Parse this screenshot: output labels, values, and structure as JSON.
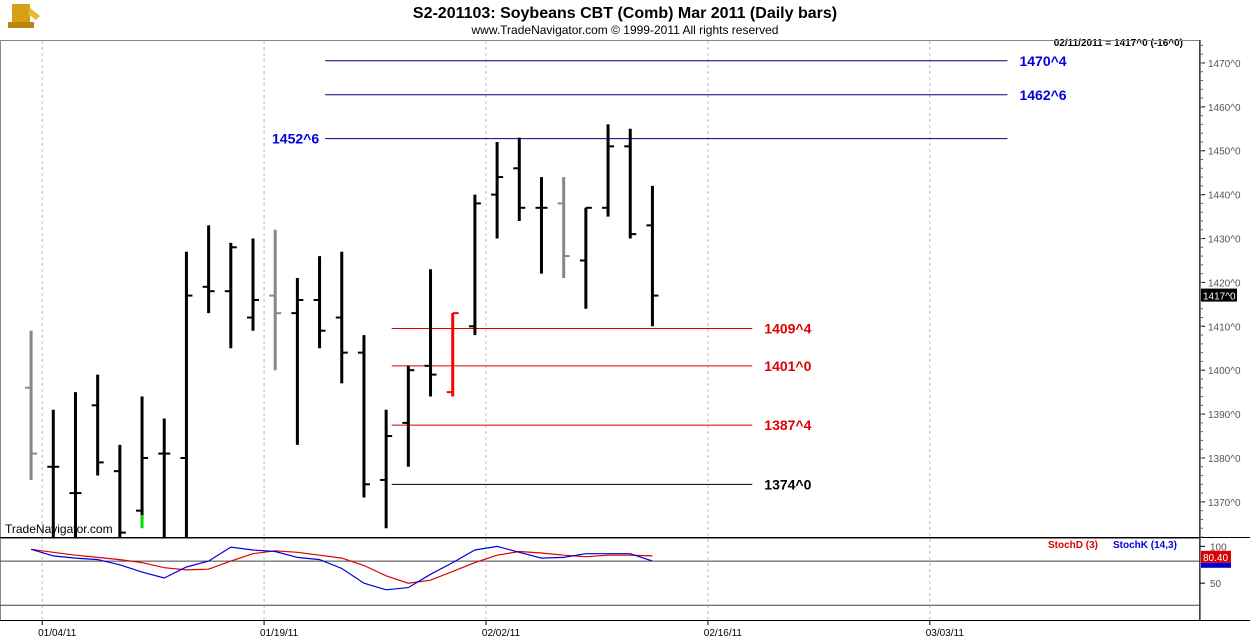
{
  "header": {
    "title": "S2-201103:  Soybeans CBT (Comb) Mar 2011  (Daily bars)",
    "subtitle": "www.TradeNavigator.com © 1999-2011 All rights reserved",
    "last_info": "02/11/2011 = 1417^0 (-16^0)",
    "watermark": "TradeNavigator.com",
    "logo": "trophy-icon"
  },
  "colors": {
    "bar": "#000000",
    "gray_bar": "#888888",
    "red_bar": "#ff0000",
    "green_bar": "#00dd00",
    "resistance": "#000080",
    "resistance_label": "#0000dd",
    "support": "#dd0000",
    "support_label": "#dd0000",
    "base_line": "#000000",
    "stoch_d": "#dd0000",
    "stoch_k": "#0000dd",
    "grid": "#bbbbbb"
  },
  "chart_data": [
    {
      "type": "ohlc",
      "ylim": [
        1362,
        1475
      ],
      "yticks": [
        "1370^0",
        "1380^0",
        "1390^0",
        "1400^0",
        "1410^0",
        "1420^0",
        "1430^0",
        "1440^0",
        "1450^0",
        "1460^0",
        "1470^0"
      ],
      "ytick_values": [
        1370,
        1380,
        1390,
        1400,
        1410,
        1420,
        1430,
        1440,
        1450,
        1460,
        1470
      ],
      "xticks": [
        "01/04/11",
        "01/19/11",
        "02/02/11",
        "02/16/11",
        "03/03/11"
      ],
      "xtick_index": [
        0.5,
        10.5,
        20.5,
        30.5,
        40.5
      ],
      "xlim": [
        -0.5,
        52
      ],
      "last_price": "1417^0",
      "last_value": 1417,
      "bars": [
        {
          "o": 1396,
          "h": 1409,
          "l": 1375,
          "c": 1381,
          "color": "gray"
        },
        {
          "o": 1378,
          "h": 1391,
          "l": 1362,
          "c": 1378,
          "color": "black"
        },
        {
          "o": 1372,
          "h": 1395,
          "l": 1362,
          "c": 1372,
          "color": "black"
        },
        {
          "o": 1392,
          "h": 1399,
          "l": 1376,
          "c": 1379,
          "color": "black"
        },
        {
          "o": 1377,
          "h": 1383,
          "l": 1362,
          "c": 1363,
          "color": "black"
        },
        {
          "o": 1368,
          "h": 1394,
          "l": 1366,
          "c": 1380,
          "color": "black"
        },
        {
          "o": 1381,
          "h": 1389,
          "l": 1362,
          "c": 1381,
          "color": "black"
        },
        {
          "o": 1380,
          "h": 1427,
          "l": 1362,
          "c": 1417,
          "color": "black"
        },
        {
          "o": 1419,
          "h": 1433,
          "l": 1413,
          "c": 1418,
          "color": "black"
        },
        {
          "o": 1418,
          "h": 1429,
          "l": 1405,
          "c": 1428,
          "color": "black"
        },
        {
          "o": 1412,
          "h": 1430,
          "l": 1409,
          "c": 1416,
          "color": "black"
        },
        {
          "o": 1417,
          "h": 1432,
          "l": 1400,
          "c": 1413,
          "color": "gray"
        },
        {
          "o": 1413,
          "h": 1421,
          "l": 1383,
          "c": 1416,
          "color": "black"
        },
        {
          "o": 1416,
          "h": 1426,
          "l": 1405,
          "c": 1409,
          "color": "black"
        },
        {
          "o": 1412,
          "h": 1427,
          "l": 1397,
          "c": 1404,
          "color": "black"
        },
        {
          "o": 1404,
          "h": 1408,
          "l": 1371,
          "c": 1374,
          "color": "black"
        },
        {
          "o": 1375,
          "h": 1391,
          "l": 1364,
          "c": 1385,
          "color": "black"
        },
        {
          "o": 1388,
          "h": 1401,
          "l": 1378,
          "c": 1400,
          "color": "black"
        },
        {
          "o": 1401,
          "h": 1423,
          "l": 1394,
          "c": 1399,
          "color": "black"
        },
        {
          "o": 1395,
          "h": 1413,
          "l": 1394,
          "c": 1413,
          "color": "red"
        },
        {
          "o": 1410,
          "h": 1440,
          "l": 1408,
          "c": 1438,
          "color": "black"
        },
        {
          "o": 1440,
          "h": 1452,
          "l": 1430,
          "c": 1444,
          "color": "black"
        },
        {
          "o": 1446,
          "h": 1453,
          "l": 1434,
          "c": 1437,
          "color": "black"
        },
        {
          "o": 1437,
          "h": 1444,
          "l": 1422,
          "c": 1437,
          "color": "black"
        },
        {
          "o": 1438,
          "h": 1444,
          "l": 1421,
          "c": 1426,
          "color": "gray"
        },
        {
          "o": 1425,
          "h": 1437,
          "l": 1414,
          "c": 1437,
          "color": "black"
        },
        {
          "o": 1437,
          "h": 1456,
          "l": 1435,
          "c": 1451,
          "color": "black"
        },
        {
          "o": 1451,
          "h": 1455,
          "l": 1430,
          "c": 1431,
          "color": "black"
        },
        {
          "o": 1433,
          "h": 1442,
          "l": 1410,
          "c": 1417,
          "color": "black"
        }
      ],
      "levels": [
        {
          "value": 1470.5,
          "label": "1470^4",
          "kind": "resistance",
          "x_start": 13.25,
          "x_end": 44,
          "label_pos": "right"
        },
        {
          "value": 1462.75,
          "label": "1462^6",
          "kind": "resistance",
          "x_start": 13.25,
          "x_end": 44,
          "label_pos": "right"
        },
        {
          "value": 1452.75,
          "label": "1452^6",
          "kind": "resistance",
          "x_start": 13.25,
          "x_end": 44,
          "label_pos": "left"
        },
        {
          "value": 1409.5,
          "label": "1409^4",
          "kind": "support",
          "x_start": 16.25,
          "x_end": 32.5,
          "label_pos": "right"
        },
        {
          "value": 1401,
          "label": "1401^0",
          "kind": "support",
          "x_start": 16.25,
          "x_end": 32.5,
          "label_pos": "right"
        },
        {
          "value": 1387.5,
          "label": "1387^4",
          "kind": "support",
          "x_start": 16.25,
          "x_end": 32.5,
          "label_pos": "right"
        },
        {
          "value": 1374,
          "label": "1374^0",
          "kind": "base",
          "x_start": 16.25,
          "x_end": 32.5,
          "label_pos": "right"
        }
      ],
      "extra_marks": [
        {
          "index": 5,
          "value_top": 1367,
          "value_bottom": 1364,
          "color": "green"
        }
      ]
    },
    {
      "type": "line",
      "ylim": [
        0,
        110
      ],
      "yticks": [
        "100",
        "50"
      ],
      "ytick_values": [
        100,
        50
      ],
      "xlim": [
        -0.5,
        52
      ],
      "last_value_label": "80.40",
      "last_value": 80.4,
      "series": [
        {
          "name": "StochD (3)",
          "color": "#dd0000",
          "x": [
            0,
            1,
            2,
            3,
            4,
            5,
            6,
            7,
            8,
            9,
            10,
            11,
            12,
            13,
            14,
            15,
            16,
            17,
            18,
            19,
            20,
            21,
            22,
            23,
            24,
            25,
            26,
            27,
            28
          ],
          "y": [
            96,
            92,
            88,
            85,
            82,
            78,
            71,
            68,
            69,
            80,
            90,
            94,
            92,
            88,
            84,
            74,
            60,
            50,
            54,
            66,
            78,
            88,
            93,
            91,
            88,
            86,
            88,
            88,
            87
          ]
        },
        {
          "name": "StochK (14,3)",
          "color": "#0000dd",
          "x": [
            0,
            1,
            2,
            3,
            4,
            5,
            6,
            7,
            8,
            9,
            10,
            11,
            12,
            13,
            14,
            15,
            16,
            17,
            18,
            19,
            20,
            21,
            22,
            23,
            24,
            25,
            26,
            27,
            28
          ],
          "y": [
            96,
            87,
            84,
            82,
            75,
            65,
            57,
            72,
            80,
            99,
            95,
            93,
            85,
            82,
            70,
            50,
            41,
            44,
            62,
            78,
            95,
            100,
            92,
            84,
            85,
            90,
            90,
            90,
            80
          ]
        }
      ]
    }
  ]
}
